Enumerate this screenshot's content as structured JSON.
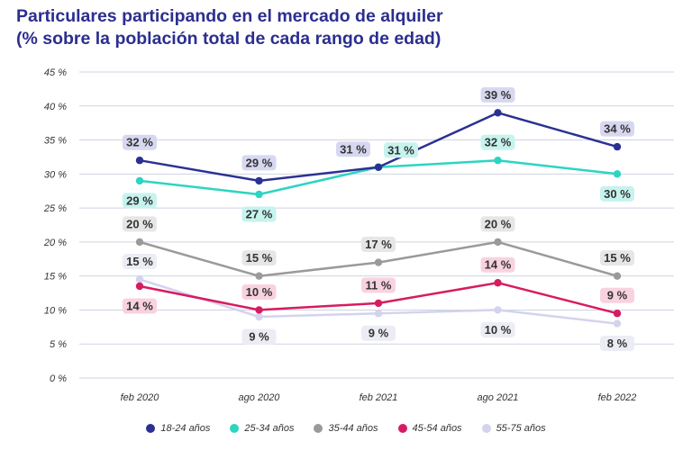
{
  "chart_data": {
    "type": "line",
    "title": "Particulares participando en el mercado de alquiler",
    "subtitle": "(% sobre la población total de cada rango de edad)",
    "categories": [
      "feb 2020",
      "ago 2020",
      "feb 2021",
      "ago 2021",
      "feb 2022"
    ],
    "ylim": [
      0,
      45
    ],
    "yticks": [
      "45 %",
      "40 %",
      "35 %",
      "30 %",
      "25 %",
      "20 %",
      "15 %",
      "10 %",
      "5 %",
      "0 %"
    ],
    "grid": true,
    "legend_position": "bottom",
    "series": [
      {
        "name": "18-24 años",
        "color": "#2b3192",
        "values": [
          32,
          29,
          31,
          39,
          34
        ],
        "labels": [
          "32 %",
          "29 %",
          "31 %",
          "39 %",
          "34 %"
        ]
      },
      {
        "name": "25-34 años",
        "color": "#2dd4c2",
        "values": [
          29,
          27,
          31,
          32,
          30
        ],
        "labels": [
          "29 %",
          "27 %",
          "31 %",
          "32 %",
          "30 %"
        ]
      },
      {
        "name": "35-44 años",
        "color": "#9a9a9a",
        "values": [
          20,
          15,
          17,
          20,
          15
        ],
        "labels": [
          "20 %",
          "15 %",
          "17 %",
          "20 %",
          "15 %"
        ]
      },
      {
        "name": "45-54 años",
        "color": "#d81b60",
        "values": [
          13.5,
          10,
          11,
          14,
          9.5
        ],
        "labels": [
          "14 %",
          "10 %",
          "11 %",
          "14 %",
          "9 %"
        ]
      },
      {
        "name": "55-75 años",
        "color": "#d3d3ee",
        "values": [
          14.5,
          9,
          9.5,
          10,
          8
        ],
        "labels": [
          "15 %",
          "9 %",
          "9 %",
          "10 %",
          "8 %"
        ]
      }
    ]
  }
}
